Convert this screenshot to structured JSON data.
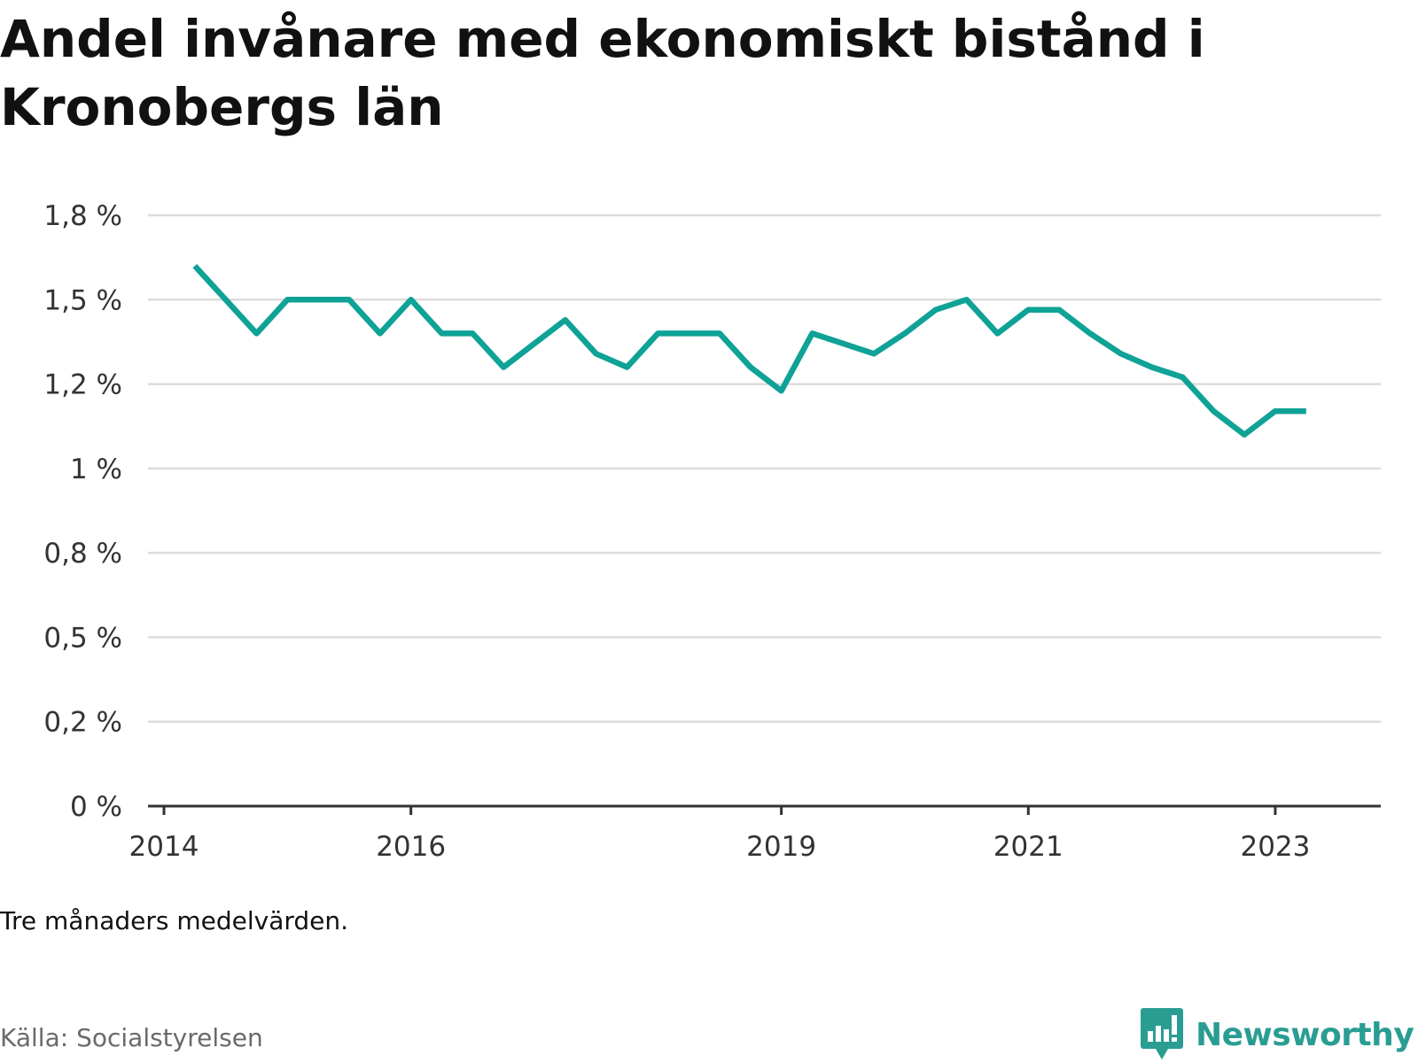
{
  "title": "Andel invånare med ekonomiskt bistånd i Kronobergs län",
  "note": "Tre månaders medelvärden.",
  "source": "Källa: Socialstyrelsen",
  "brand": {
    "name": "Newsworthy",
    "icon": "newsworthy-chart-bubble-icon"
  },
  "colors": {
    "line": "#0fa296",
    "grid": "#dcdcdc",
    "axis": "#333333",
    "brand": "#2a9d93"
  },
  "chart_data": {
    "type": "line",
    "title": "Andel invånare med ekonomiskt bistånd i Kronobergs län",
    "xlabel": "",
    "ylabel": "",
    "grid": true,
    "ylim": [
      0,
      1.75
    ],
    "yticks": [
      0,
      0.25,
      0.5,
      0.75,
      1.0,
      1.25,
      1.5,
      1.75
    ],
    "ytick_labels": [
      "0 %",
      "0,2 %",
      "0,5 %",
      "0,8 %",
      "1 %",
      "1,2 %",
      "1,5 %",
      "1,8 %"
    ],
    "xlim": [
      "2014-01-01",
      "2023-06-01"
    ],
    "xticks": [
      "2014-01-01",
      "2016-01-01",
      "2019-01-01",
      "2021-01-01",
      "2023-01-01"
    ],
    "xtick_labels": [
      "2014",
      "2016",
      "2019",
      "2021",
      "2023"
    ],
    "series": [
      {
        "x": [
          "2014-04",
          "2014-07",
          "2014-10",
          "2015-01",
          "2015-04",
          "2015-07",
          "2015-10",
          "2016-01",
          "2016-04",
          "2016-07",
          "2016-10",
          "2017-01",
          "2017-04",
          "2017-07",
          "2017-10",
          "2018-01",
          "2018-04",
          "2018-07",
          "2018-10",
          "2019-01",
          "2019-04",
          "2019-07",
          "2019-10",
          "2020-01",
          "2020-04",
          "2020-07",
          "2020-10",
          "2021-01",
          "2021-04",
          "2021-07",
          "2021-10",
          "2022-01",
          "2022-04",
          "2022-07",
          "2022-10",
          "2023-01",
          "2023-04"
        ],
        "y": [
          1.6,
          1.5,
          1.4,
          1.5,
          1.5,
          1.5,
          1.4,
          1.5,
          1.4,
          1.4,
          1.3,
          1.37,
          1.44,
          1.34,
          1.3,
          1.4,
          1.4,
          1.4,
          1.3,
          1.23,
          1.4,
          1.37,
          1.34,
          1.4,
          1.47,
          1.5,
          1.4,
          1.47,
          1.47,
          1.4,
          1.34,
          1.3,
          1.27,
          1.17,
          1.1,
          1.17,
          1.17
        ]
      }
    ]
  }
}
